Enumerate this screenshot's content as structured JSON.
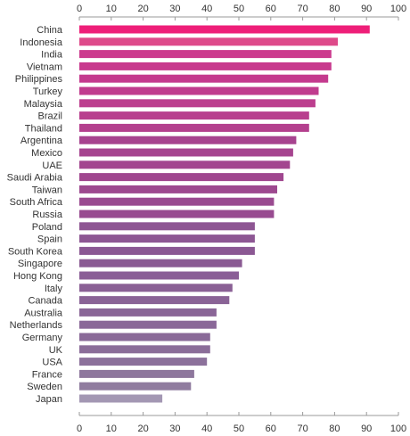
{
  "chart_data": {
    "type": "bar",
    "orientation": "horizontal",
    "categories": [
      "China",
      "Indonesia",
      "India",
      "Vietnam",
      "Philippines",
      "Turkey",
      "Malaysia",
      "Brazil",
      "Thailand",
      "Argentina",
      "Mexico",
      "UAE",
      "Saudi Arabia",
      "Taiwan",
      "South Africa",
      "Russia",
      "Poland",
      "Spain",
      "South Korea",
      "Singapore",
      "Hong Kong",
      "Italy",
      "Canada",
      "Australia",
      "Netherlands",
      "Germany",
      "UK",
      "USA",
      "France",
      "Sweden",
      "Japan"
    ],
    "values": [
      91,
      81,
      79,
      79,
      78,
      75,
      74,
      72,
      72,
      68,
      67,
      66,
      64,
      62,
      61,
      61,
      55,
      55,
      55,
      51,
      50,
      48,
      47,
      43,
      43,
      41,
      41,
      40,
      36,
      35,
      26
    ],
    "colors": [
      "#ee1e78",
      "#de4a8a",
      "#cc3a8e",
      "#c83a8e",
      "#c43a8e",
      "#c03c8e",
      "#bc3e8e",
      "#b83f8e",
      "#b4408e",
      "#a7438f",
      "#a6448f",
      "#a3468f",
      "#a0478f",
      "#9d498f",
      "#9a4a90",
      "#984b90",
      "#8e5693",
      "#8d5793",
      "#8b5893",
      "#8a5a93",
      "#8a5e96",
      "#8a6095",
      "#8a6396",
      "#8a6697",
      "#8a6898",
      "#8a6a98",
      "#8b6d99",
      "#8c719b",
      "#8e779d",
      "#907c9f",
      "#a397b3"
    ],
    "xlim": [
      0,
      100
    ],
    "xticks": [
      "0",
      "10",
      "20",
      "30",
      "40",
      "50",
      "60",
      "70",
      "80",
      "90",
      "100"
    ],
    "title": "",
    "xlabel": "",
    "ylabel": "",
    "grid": false
  }
}
